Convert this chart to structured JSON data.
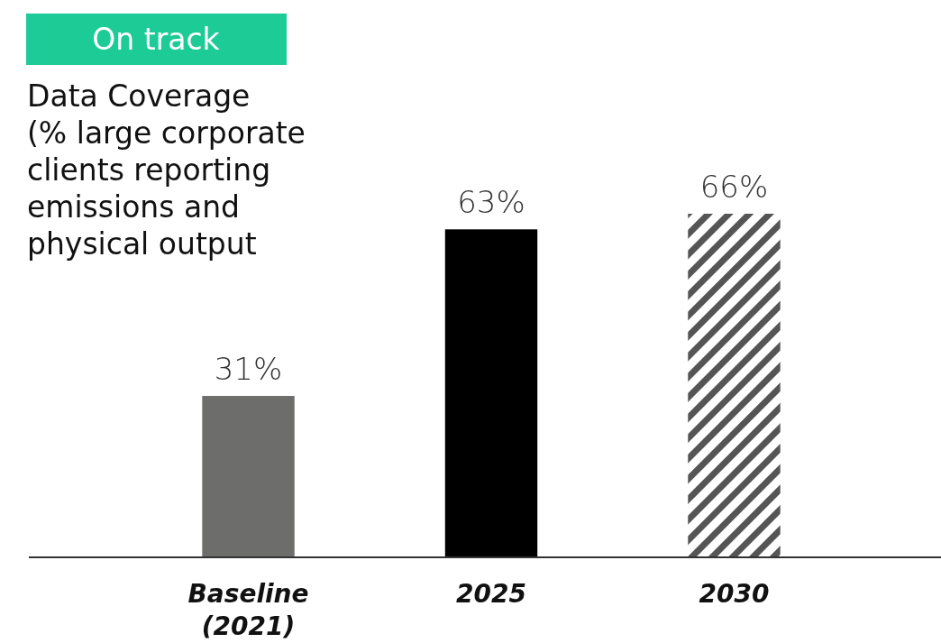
{
  "chart_data": {
    "type": "bar",
    "title": "Data Coverage\n(% large corporate\nclients reporting\nemissions and\nphysical output",
    "annotations": [
      "On track"
    ],
    "categories": [
      "Baseline\n(2021)",
      "2025",
      "2030"
    ],
    "values": [
      31,
      63,
      66
    ],
    "colors": [
      "#6d6d6b",
      "#000000",
      "#555555"
    ],
    "value_labels": [
      "31%",
      "63%",
      "66%"
    ]
  }
}
